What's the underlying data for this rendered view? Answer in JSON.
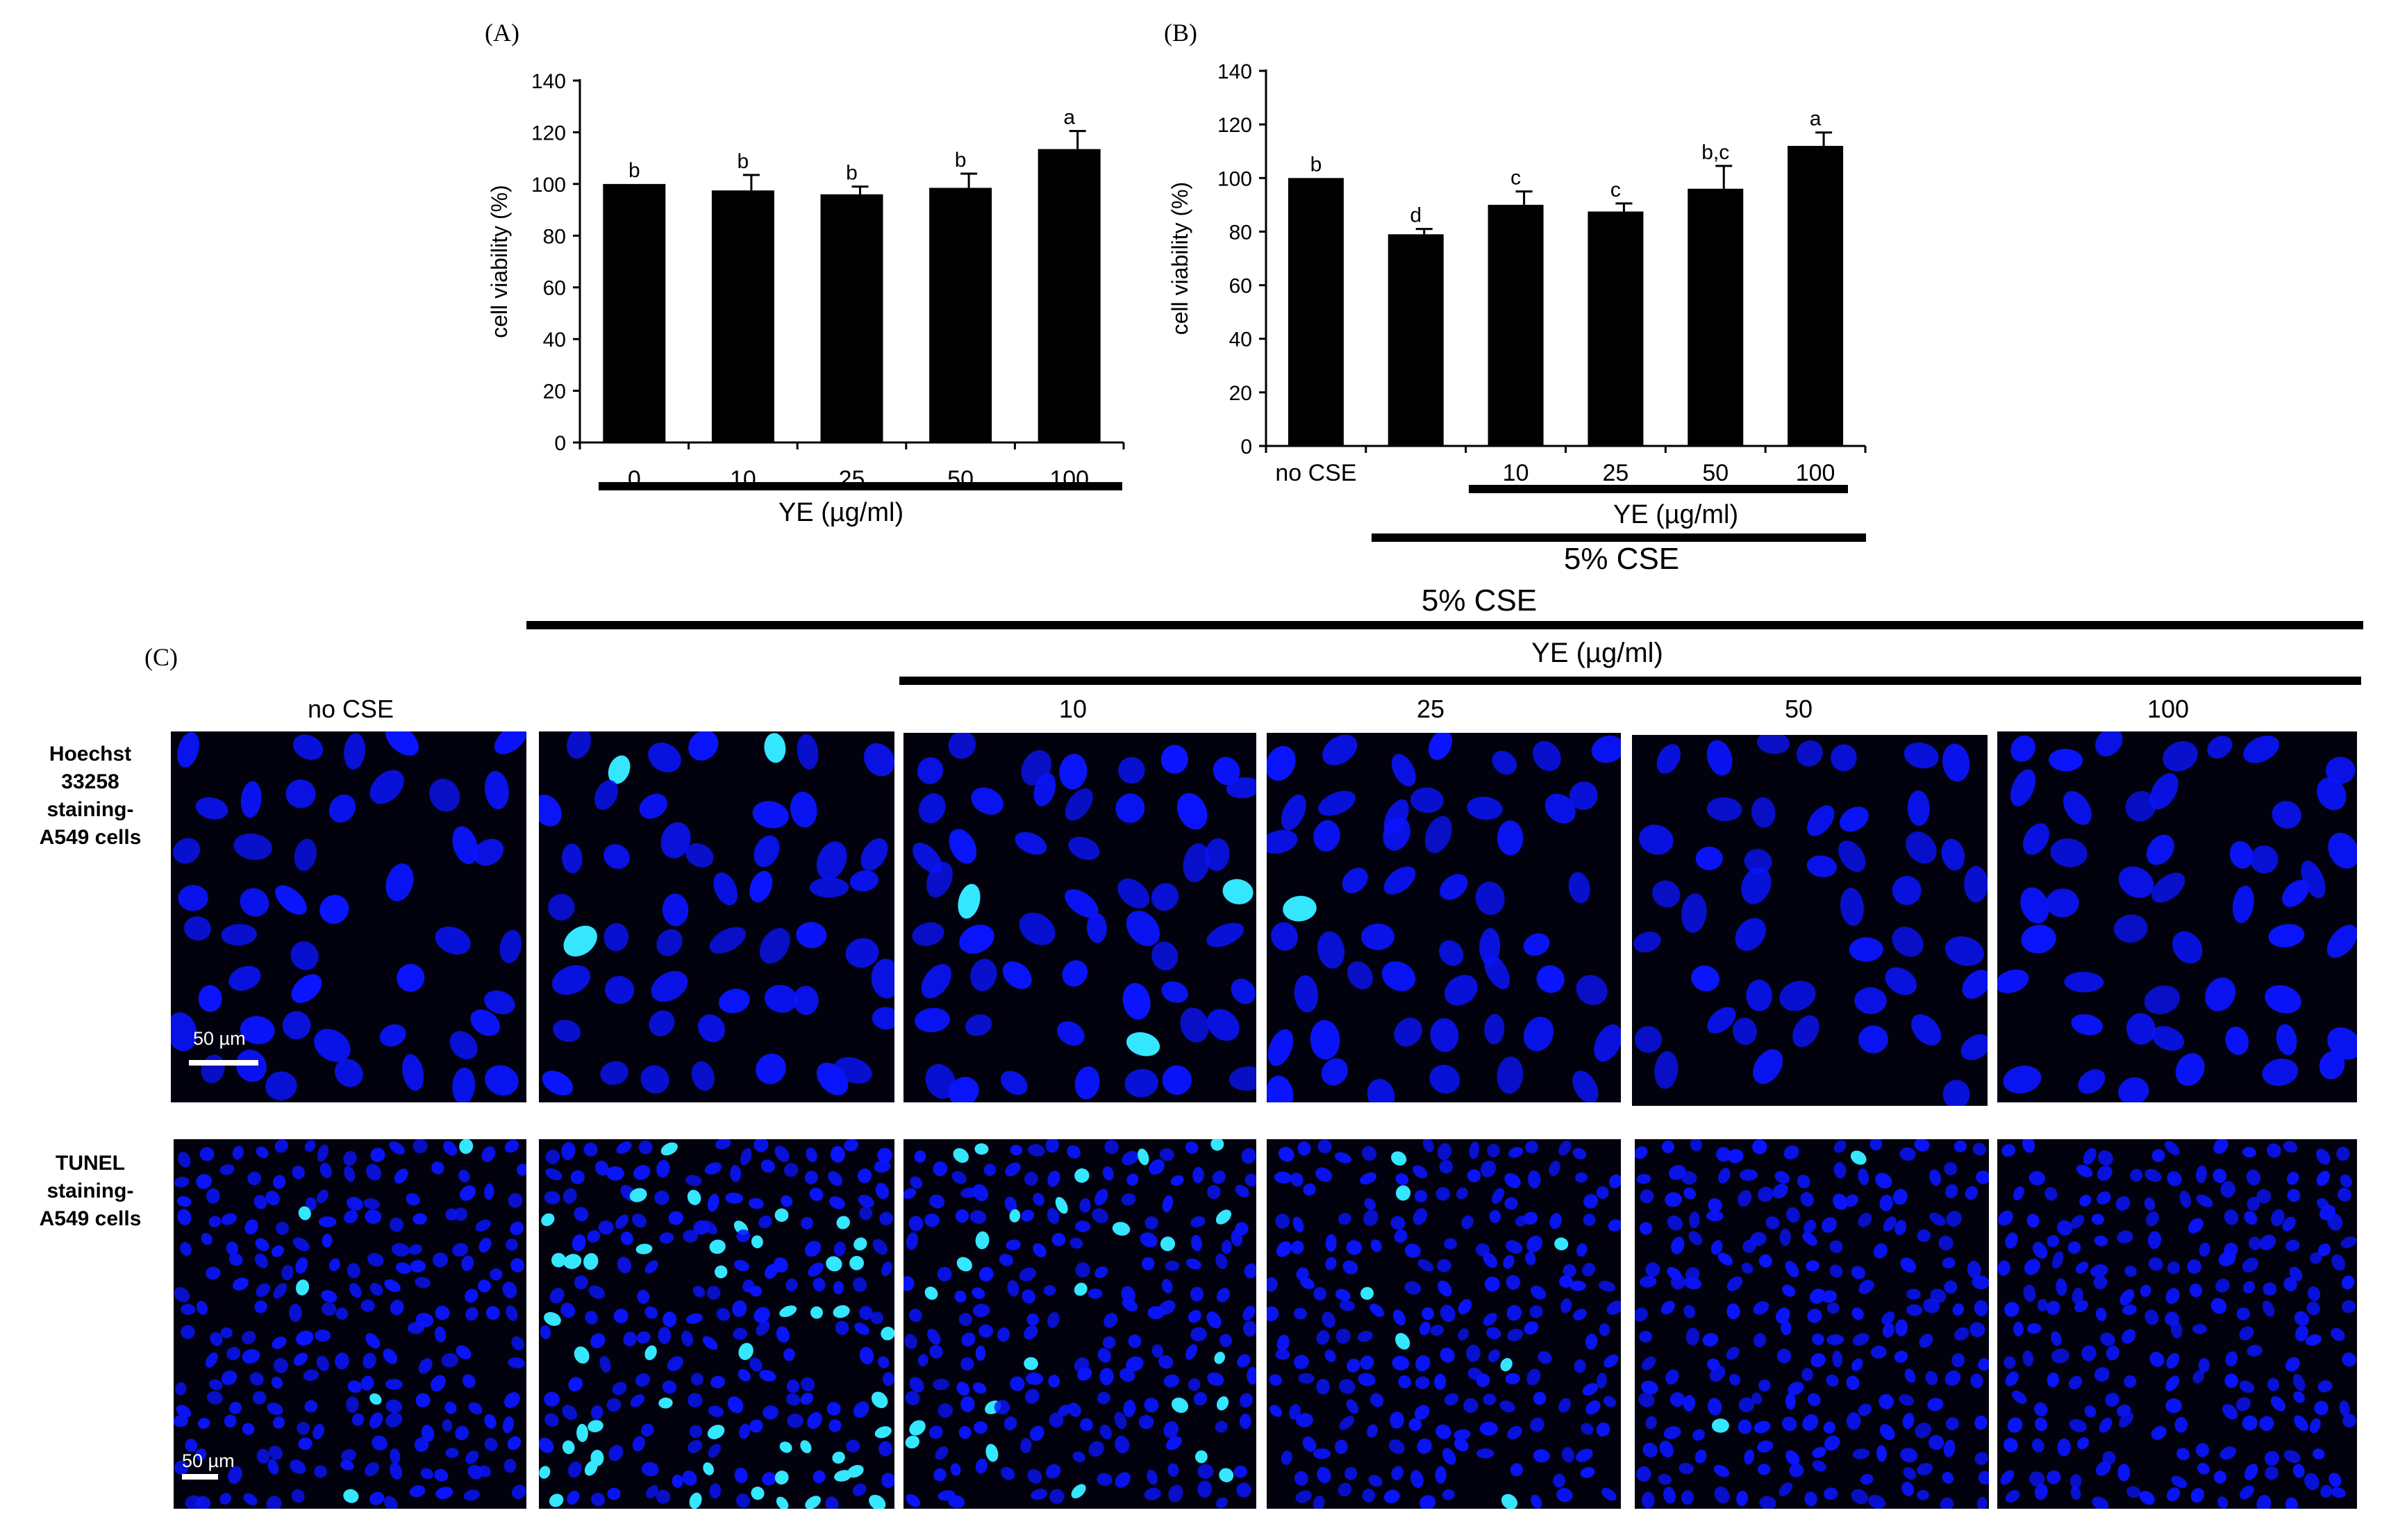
{
  "colors": {
    "bar": "#000000",
    "nucleus": "#0a14ff",
    "apoptotic": "#35e6ff",
    "image_bg": "#02020f"
  },
  "chart_data": [
    {
      "type": "bar",
      "panel": "(A)",
      "categories": [
        "0",
        "10",
        "25",
        "50",
        "100"
      ],
      "values": [
        100,
        97.5,
        96,
        98.5,
        113.5
      ],
      "errors": [
        0,
        6,
        3,
        5.5,
        7
      ],
      "letters": [
        "b",
        "b",
        "b",
        "b",
        "a"
      ],
      "ylabel": "cell viability (%)",
      "ylim": [
        0,
        140
      ],
      "yticks": [
        "0",
        "20",
        "40",
        "60",
        "80",
        "100",
        "120",
        "140"
      ],
      "group_label": "YE (µg/ml)"
    },
    {
      "type": "bar",
      "panel": "(B)",
      "categories": [
        "no CSE",
        "",
        "10",
        "25",
        "50",
        "100"
      ],
      "values": [
        100,
        79,
        90,
        87.5,
        96,
        112
      ],
      "errors": [
        0,
        2,
        5,
        3,
        8.5,
        5
      ],
      "letters": [
        "b",
        "d",
        "c",
        "c",
        "b,c",
        "a"
      ],
      "ylabel": "cell viability (%)",
      "ylim": [
        0,
        140
      ],
      "yticks": [
        "0",
        "20",
        "40",
        "60",
        "80",
        "100",
        "120",
        "140"
      ],
      "group_label": "YE (µg/ml)",
      "group_label_2": "5% CSE"
    }
  ],
  "panel_c": {
    "label": "(C)",
    "top_label": "5% CSE",
    "sub_label": "YE (µg/ml)",
    "columns": [
      "no CSE",
      "",
      "10",
      "25",
      "50",
      "100"
    ],
    "rows": [
      {
        "label": [
          "Hoechst",
          "33258",
          "staining-",
          "A549  cells"
        ],
        "scale_text": "50 µm"
      },
      {
        "label": [
          "TUNEL",
          "staining-",
          "A549  cells"
        ],
        "scale_text": "50 µm"
      }
    ]
  }
}
